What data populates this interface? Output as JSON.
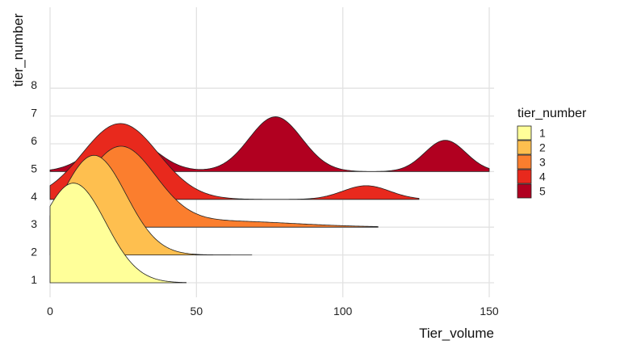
{
  "chart_data": {
    "type": "ridgeline",
    "xlabel": "Tier_volume",
    "ylabel": "tier_number",
    "xlim": [
      0,
      150
    ],
    "x_ticks": [
      0,
      50,
      100,
      150
    ],
    "y_ticks": [
      "1",
      "2",
      "3",
      "4",
      "5",
      "6",
      "7",
      "8"
    ],
    "grid": true,
    "legend": {
      "title": "tier_number",
      "placement": "right",
      "entries": [
        "1",
        "2",
        "3",
        "4",
        "5"
      ]
    },
    "colors": [
      "#FFFF99",
      "#FEBF4F",
      "#FB7E2E",
      "#E8291D",
      "#B10020"
    ],
    "series": [
      {
        "name": "1",
        "baseline": 1,
        "x_max": 46.5,
        "components": [
          {
            "mean": 8,
            "sd": 11,
            "weight": 1
          }
        ]
      },
      {
        "name": "2",
        "baseline": 2,
        "x_max": 69,
        "components": [
          {
            "mean": 15,
            "sd": 11,
            "weight": 1
          }
        ]
      },
      {
        "name": "3",
        "baseline": 3,
        "x_max": 112,
        "components": [
          {
            "mean": 24,
            "sd": 12,
            "weight": 0.86
          },
          {
            "mean": 58,
            "sd": 25,
            "weight": 0.14
          }
        ]
      },
      {
        "name": "4",
        "baseline": 4,
        "x_max": 126,
        "components": [
          {
            "mean": 24,
            "sd": 13,
            "weight": 0.9
          },
          {
            "mean": 108,
            "sd": 8,
            "weight": 0.1
          }
        ]
      },
      {
        "name": "5",
        "baseline": 5,
        "x_max": 150,
        "components": [
          {
            "mean": 25,
            "sd": 10,
            "weight": 0.35
          },
          {
            "mean": 77,
            "sd": 9,
            "weight": 0.45
          },
          {
            "mean": 135,
            "sd": 7,
            "weight": 0.2
          }
        ]
      }
    ]
  }
}
